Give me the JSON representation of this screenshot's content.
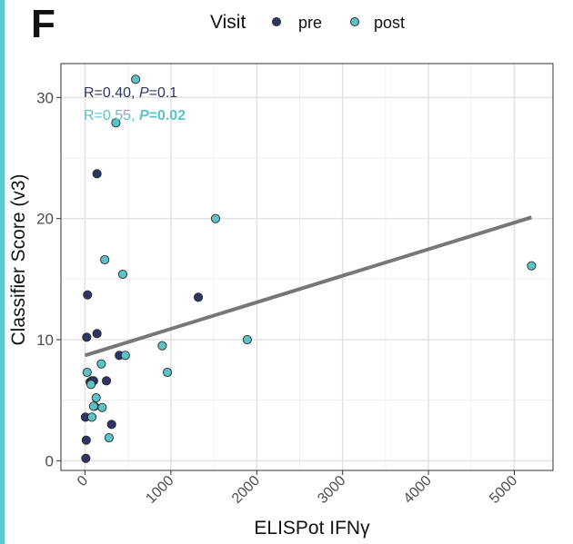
{
  "panel_label": "F",
  "colors": {
    "pre": "#2e3564",
    "post": "#5bc3c6",
    "regression_line": "#777777",
    "pre_text": "#2e3564",
    "post_text": "#5bc3c6",
    "edge_accent": "#5bc8d0"
  },
  "chart_data": {
    "type": "scatter",
    "xlabel": "ELISPot IFNγ",
    "ylabel": "Classifier Score (v3)",
    "xlim": [
      -280,
      5450
    ],
    "ylim": [
      -0.8,
      32.8
    ],
    "x_ticks": [
      0,
      1000,
      2000,
      3000,
      4000,
      5000
    ],
    "x_tick_labels": [
      "0",
      "1000",
      "2000",
      "3000",
      "4000",
      "5000"
    ],
    "y_ticks": [
      0,
      10,
      20,
      30
    ],
    "y_tick_labels": [
      "0",
      "10",
      "20",
      "30"
    ],
    "grid": true,
    "legend": {
      "title": "Visit",
      "position": "top",
      "entries": [
        {
          "key": "pre",
          "label": "pre"
        },
        {
          "key": "post",
          "label": "post"
        }
      ]
    },
    "annotations": {
      "pre": {
        "r_text": "R=0.40, ",
        "p_label": "P",
        "p_value": "=0.1"
      },
      "post": {
        "r_text": "R=0.55, ",
        "p_label": "P",
        "p_value": "=0.02"
      }
    },
    "regression": {
      "x": [
        0,
        5200
      ],
      "y": [
        8.7,
        20.1
      ]
    },
    "series": [
      {
        "name": "pre",
        "points": [
          [
            10,
            0.2
          ],
          [
            5,
            3.6
          ],
          [
            15,
            1.7
          ],
          [
            30,
            13.7
          ],
          [
            20,
            10.2
          ],
          [
            60,
            6.5
          ],
          [
            80,
            6.6
          ],
          [
            100,
            6.6
          ],
          [
            110,
            4.5
          ],
          [
            140,
            10.5
          ],
          [
            140,
            23.7
          ],
          [
            250,
            6.6
          ],
          [
            310,
            3.0
          ],
          [
            400,
            8.7
          ],
          [
            1320,
            13.5
          ]
        ]
      },
      {
        "name": "post",
        "points": [
          [
            25,
            7.3
          ],
          [
            70,
            6.3
          ],
          [
            80,
            3.6
          ],
          [
            100,
            4.5
          ],
          [
            130,
            5.2
          ],
          [
            190,
            8.0
          ],
          [
            200,
            4.4
          ],
          [
            230,
            16.6
          ],
          [
            280,
            1.9
          ],
          [
            360,
            27.9
          ],
          [
            440,
            15.4
          ],
          [
            470,
            8.7
          ],
          [
            590,
            31.5
          ],
          [
            900,
            9.5
          ],
          [
            960,
            7.3
          ],
          [
            1520,
            20.0
          ],
          [
            1890,
            10.0
          ],
          [
            5200,
            16.1
          ]
        ]
      }
    ]
  }
}
